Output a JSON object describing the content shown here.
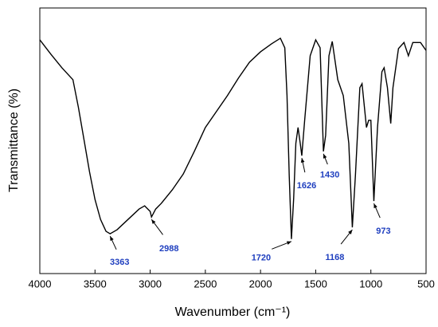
{
  "chart_data": {
    "type": "line",
    "xlabel": "Wavenumber (cm⁻¹)",
    "ylabel": "Transmittance (%)",
    "color": "#000000",
    "xlim": [
      4000,
      500
    ],
    "xticks": [
      4000,
      3500,
      3000,
      2500,
      2000,
      1500,
      1000,
      500
    ],
    "ylim": [
      0,
      100
    ],
    "x": [
      4000,
      3900,
      3800,
      3700,
      3650,
      3600,
      3550,
      3500,
      3450,
      3400,
      3363,
      3300,
      3200,
      3100,
      3050,
      3000,
      2988,
      2950,
      2900,
      2800,
      2700,
      2600,
      2500,
      2400,
      2300,
      2200,
      2100,
      2000,
      1900,
      1820,
      1780,
      1760,
      1740,
      1720,
      1700,
      1680,
      1660,
      1640,
      1626,
      1600,
      1550,
      1500,
      1460,
      1430,
      1410,
      1380,
      1350,
      1300,
      1250,
      1200,
      1168,
      1140,
      1100,
      1080,
      1040,
      1020,
      1000,
      973,
      940,
      900,
      880,
      850,
      820,
      800,
      750,
      700,
      660,
      620,
      550,
      500
    ],
    "values": [
      88,
      82.6,
      77.5,
      73,
      62.5,
      50.5,
      38.4,
      27.9,
      20.4,
      15.9,
      15,
      16.5,
      20.4,
      24.3,
      25.5,
      23.4,
      21.3,
      24.3,
      26.4,
      31.5,
      37.5,
      46,
      55,
      61,
      67,
      73.6,
      79.6,
      83.5,
      86.5,
      88.6,
      85,
      67,
      37,
      13,
      28,
      49,
      55,
      49,
      44.4,
      57.7,
      82,
      88,
      85,
      46,
      52,
      82,
      87.4,
      73,
      67,
      49,
      17.4,
      37,
      70,
      71.5,
      55,
      57.7,
      57.7,
      27.3,
      55,
      76,
      77.5,
      70,
      56.5,
      70,
      84.7,
      87,
      82,
      87,
      87,
      84
    ],
    "annotations": [
      {
        "text": "3363",
        "x": 3363
      },
      {
        "text": "2988",
        "x": 2988
      },
      {
        "text": "1720",
        "x": 1720
      },
      {
        "text": "1626",
        "x": 1626
      },
      {
        "text": "1430",
        "x": 1430
      },
      {
        "text": "1168",
        "x": 1168
      },
      {
        "text": "973",
        "x": 973
      }
    ]
  }
}
